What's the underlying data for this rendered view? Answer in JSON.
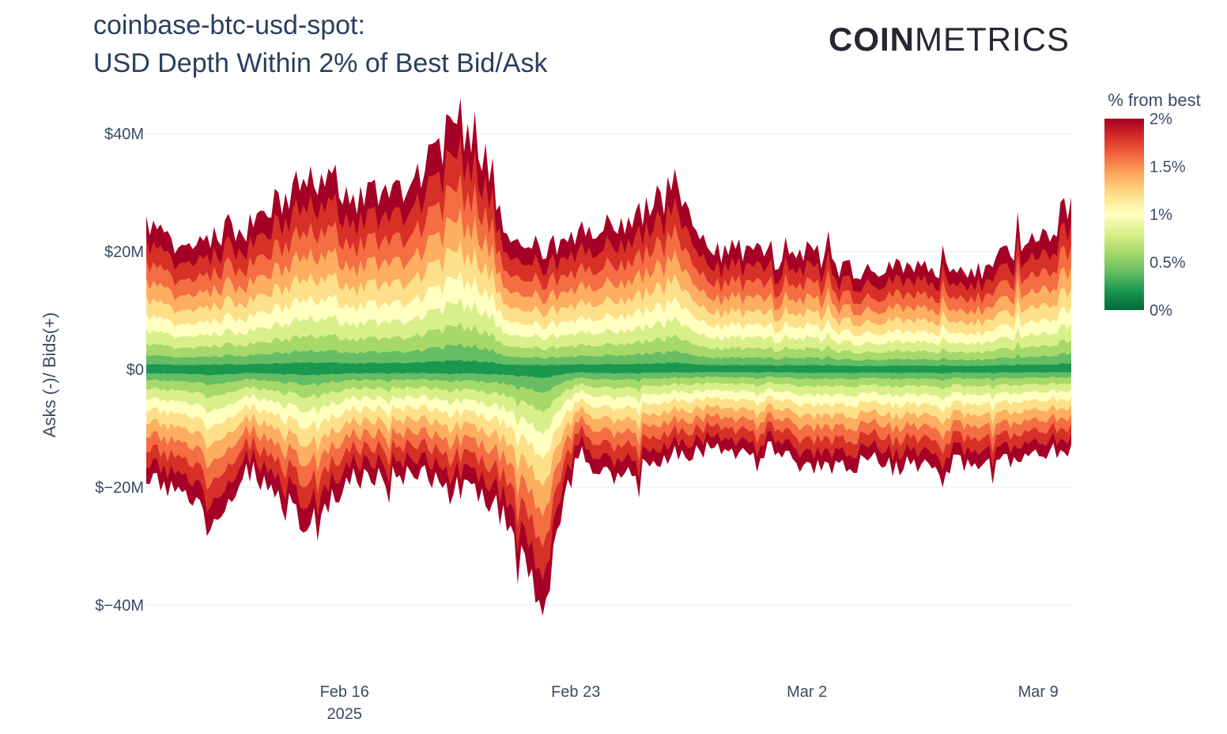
{
  "title_line1": "coinbase-btc-usd-spot:",
  "title_line2": "USD Depth Within 2% of Best Bid/Ask",
  "logo": {
    "part1": "COIN",
    "part2": "METRICS"
  },
  "chart_data": {
    "type": "area",
    "ylabel": "Asks (-)/ Bids(+)",
    "ylim": [
      -50,
      47
    ],
    "yticks": [
      {
        "value": 40,
        "label": "$40M"
      },
      {
        "value": 20,
        "label": "$20M"
      },
      {
        "value": 0,
        "label": "$0"
      },
      {
        "value": -20,
        "label": "$−20M"
      },
      {
        "value": -40,
        "label": "$−40M"
      }
    ],
    "xticks": [
      {
        "date": "2025-02-16",
        "label": "Feb 16",
        "sublabel": "2025"
      },
      {
        "date": "2025-02-23",
        "label": "Feb 23",
        "sublabel": ""
      },
      {
        "date": "2025-03-02",
        "label": "Mar 2",
        "sublabel": ""
      },
      {
        "date": "2025-03-09",
        "label": "Mar 9",
        "sublabel": ""
      }
    ],
    "grid": true,
    "colorbar": {
      "title": "% from best",
      "ticks": [
        "2%",
        "1.5%",
        "1%",
        "0.5%",
        "0%"
      ],
      "colors": [
        "#006837",
        "#1a9850",
        "#66bd63",
        "#a6d96a",
        "#d9ef8b",
        "#ffffbf",
        "#fee08b",
        "#fdae61",
        "#f46d43",
        "#d73027",
        "#a50026"
      ]
    },
    "bands_percent": [
      0.2,
      0.4,
      0.6,
      0.8,
      1.0,
      1.2,
      1.4,
      1.6,
      1.8,
      2.0
    ],
    "dates": [
      "2025-02-10",
      "2025-02-11",
      "2025-02-12",
      "2025-02-13",
      "2025-02-14",
      "2025-02-15",
      "2025-02-16",
      "2025-02-17",
      "2025-02-18",
      "2025-02-19",
      "2025-02-20",
      "2025-02-21",
      "2025-02-22",
      "2025-02-23",
      "2025-02-24",
      "2025-02-25",
      "2025-02-26",
      "2025-02-27",
      "2025-02-28",
      "2025-03-01",
      "2025-03-02",
      "2025-03-03",
      "2025-03-04",
      "2025-03-05",
      "2025-03-06",
      "2025-03-07",
      "2025-03-08",
      "2025-03-09",
      "2025-03-10"
    ],
    "bids_total": [
      26,
      20,
      24,
      25,
      29,
      34,
      30,
      31,
      33,
      40,
      42,
      23,
      21,
      22,
      25,
      27,
      32,
      20,
      21,
      19,
      21,
      18,
      17,
      18,
      17,
      16,
      21,
      22,
      29
    ],
    "asks_total": [
      18,
      22,
      28,
      17,
      22,
      27,
      19,
      19,
      18,
      20,
      22,
      26,
      40,
      14,
      18,
      17,
      15,
      14,
      15,
      14,
      17,
      18,
      16,
      17,
      17,
      16,
      15,
      15,
      14
    ]
  }
}
